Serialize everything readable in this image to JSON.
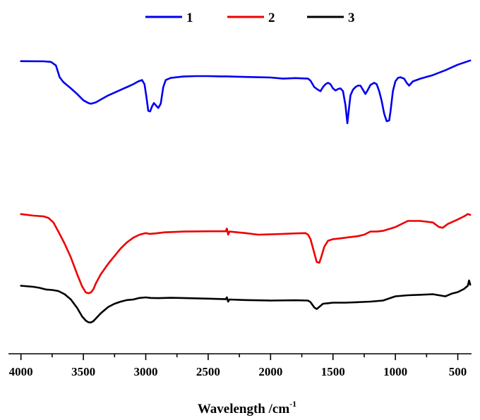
{
  "chart_data": {
    "type": "line",
    "title": "",
    "xlabel": "Wavelength /cm",
    "xlabel_superscript": "-1",
    "ylabel": "",
    "xlim": [
      4100,
      390
    ],
    "x_reversed": true,
    "ylim": [
      0,
      100
    ],
    "grid": false,
    "legend_position": "top-center",
    "x_ticks": [
      4000,
      3500,
      3000,
      2500,
      2000,
      1500,
      1000,
      500
    ],
    "x_tick_labels": [
      "4000",
      "3500",
      "3000",
      "2500",
      "2000",
      "1500",
      "1000",
      "500"
    ],
    "series": [
      {
        "name": "1",
        "color": "#0000ee",
        "points": [
          [
            4000,
            91.5
          ],
          [
            3820,
            91.4
          ],
          [
            3760,
            91.0
          ],
          [
            3720,
            88.5
          ],
          [
            3690,
            80.0
          ],
          [
            3660,
            76.5
          ],
          [
            3600,
            72.0
          ],
          [
            3550,
            68.0
          ],
          [
            3500,
            63.5
          ],
          [
            3460,
            61.5
          ],
          [
            3440,
            61.0
          ],
          [
            3400,
            62.0
          ],
          [
            3350,
            64.5
          ],
          [
            3300,
            67.0
          ],
          [
            3250,
            69.0
          ],
          [
            3200,
            71.0
          ],
          [
            3150,
            73.0
          ],
          [
            3100,
            75.0
          ],
          [
            3060,
            77.0
          ],
          [
            3030,
            78.0
          ],
          [
            3010,
            75.0
          ],
          [
            2995,
            66.0
          ],
          [
            2980,
            56.0
          ],
          [
            2965,
            55.5
          ],
          [
            2950,
            59.0
          ],
          [
            2935,
            61.5
          ],
          [
            2920,
            60.0
          ],
          [
            2900,
            58.0
          ],
          [
            2880,
            61.0
          ],
          [
            2860,
            73.0
          ],
          [
            2840,
            78.0
          ],
          [
            2800,
            79.5
          ],
          [
            2700,
            80.5
          ],
          [
            2600,
            80.8
          ],
          [
            2500,
            80.8
          ],
          [
            2400,
            80.6
          ],
          [
            2350,
            80.6
          ],
          [
            2200,
            80.2
          ],
          [
            2000,
            79.8
          ],
          [
            1900,
            79.0
          ],
          [
            1800,
            79.4
          ],
          [
            1700,
            79.0
          ],
          [
            1680,
            77.5
          ],
          [
            1650,
            73.0
          ],
          [
            1620,
            71.0
          ],
          [
            1600,
            70.0
          ],
          [
            1580,
            73.0
          ],
          [
            1560,
            75.0
          ],
          [
            1540,
            76.0
          ],
          [
            1520,
            75.0
          ],
          [
            1500,
            72.0
          ],
          [
            1480,
            70.5
          ],
          [
            1460,
            71.5
          ],
          [
            1440,
            72.0
          ],
          [
            1420,
            70.0
          ],
          [
            1400,
            60.0
          ],
          [
            1385,
            47.0
          ],
          [
            1375,
            55.0
          ],
          [
            1360,
            67.0
          ],
          [
            1340,
            71.0
          ],
          [
            1320,
            73.0
          ],
          [
            1300,
            74.0
          ],
          [
            1280,
            74.0
          ],
          [
            1260,
            71.0
          ],
          [
            1240,
            68.0
          ],
          [
            1220,
            71.0
          ],
          [
            1200,
            74.5
          ],
          [
            1170,
            76.0
          ],
          [
            1150,
            75.0
          ],
          [
            1130,
            70.0
          ],
          [
            1110,
            63.0
          ],
          [
            1090,
            54.0
          ],
          [
            1070,
            48.5
          ],
          [
            1050,
            49.0
          ],
          [
            1040,
            55.0
          ],
          [
            1020,
            70.0
          ],
          [
            1000,
            77.0
          ],
          [
            980,
            79.5
          ],
          [
            960,
            80.0
          ],
          [
            930,
            79.0
          ],
          [
            910,
            76.0
          ],
          [
            890,
            74.0
          ],
          [
            875,
            75.5
          ],
          [
            860,
            77.0
          ],
          [
            800,
            79.0
          ],
          [
            700,
            81.5
          ],
          [
            600,
            85.0
          ],
          [
            500,
            89.0
          ],
          [
            450,
            90.5
          ],
          [
            400,
            92.0
          ]
        ]
      },
      {
        "name": "2",
        "color": "#ee0000",
        "points": [
          [
            4000,
            57.5
          ],
          [
            3900,
            56.5
          ],
          [
            3820,
            56.0
          ],
          [
            3780,
            55.0
          ],
          [
            3740,
            52.0
          ],
          [
            3700,
            46.0
          ],
          [
            3650,
            38.0
          ],
          [
            3600,
            29.0
          ],
          [
            3550,
            18.0
          ],
          [
            3510,
            10.0
          ],
          [
            3480,
            6.0
          ],
          [
            3460,
            5.5
          ],
          [
            3440,
            6.0
          ],
          [
            3420,
            8.0
          ],
          [
            3400,
            12.0
          ],
          [
            3360,
            18.0
          ],
          [
            3300,
            25.0
          ],
          [
            3250,
            30.0
          ],
          [
            3200,
            35.0
          ],
          [
            3150,
            39.0
          ],
          [
            3100,
            42.0
          ],
          [
            3050,
            44.0
          ],
          [
            3000,
            45.0
          ],
          [
            2970,
            44.5
          ],
          [
            2920,
            44.8
          ],
          [
            2850,
            45.5
          ],
          [
            2700,
            46.0
          ],
          [
            2500,
            46.2
          ],
          [
            2360,
            46.2
          ],
          [
            2350,
            48.0
          ],
          [
            2340,
            44.0
          ],
          [
            2330,
            46.0
          ],
          [
            2200,
            45.0
          ],
          [
            2100,
            44.0
          ],
          [
            2000,
            44.2
          ],
          [
            1900,
            44.5
          ],
          [
            1800,
            44.8
          ],
          [
            1720,
            45.0
          ],
          [
            1700,
            44.0
          ],
          [
            1680,
            41.0
          ],
          [
            1650,
            32.0
          ],
          [
            1630,
            26.0
          ],
          [
            1610,
            25.5
          ],
          [
            1595,
            29.0
          ],
          [
            1570,
            36.0
          ],
          [
            1540,
            40.0
          ],
          [
            1500,
            41.0
          ],
          [
            1450,
            41.5
          ],
          [
            1400,
            42.0
          ],
          [
            1350,
            42.5
          ],
          [
            1300,
            43.0
          ],
          [
            1250,
            44.0
          ],
          [
            1200,
            46.0
          ],
          [
            1150,
            46.0
          ],
          [
            1100,
            46.5
          ],
          [
            1000,
            49.0
          ],
          [
            900,
            53.0
          ],
          [
            800,
            53.0
          ],
          [
            700,
            52.0
          ],
          [
            650,
            49.0
          ],
          [
            620,
            48.5
          ],
          [
            580,
            51.0
          ],
          [
            500,
            54.0
          ],
          [
            450,
            56.0
          ],
          [
            420,
            57.5
          ],
          [
            400,
            57.0
          ]
        ]
      },
      {
        "name": "3",
        "color": "#000000",
        "points": [
          [
            4000,
            35.0
          ],
          [
            3900,
            34.0
          ],
          [
            3850,
            33.0
          ],
          [
            3800,
            31.5
          ],
          [
            3750,
            31.0
          ],
          [
            3700,
            30.0
          ],
          [
            3650,
            27.0
          ],
          [
            3600,
            22.0
          ],
          [
            3550,
            14.0
          ],
          [
            3510,
            6.0
          ],
          [
            3480,
            2.0
          ],
          [
            3460,
            0.5
          ],
          [
            3440,
            0.3
          ],
          [
            3420,
            1.5
          ],
          [
            3400,
            4.0
          ],
          [
            3360,
            9.0
          ],
          [
            3300,
            15.0
          ],
          [
            3250,
            18.0
          ],
          [
            3200,
            20.0
          ],
          [
            3150,
            21.5
          ],
          [
            3100,
            22.0
          ],
          [
            3050,
            23.5
          ],
          [
            3000,
            24.0
          ],
          [
            2960,
            23.5
          ],
          [
            2900,
            23.3
          ],
          [
            2800,
            23.6
          ],
          [
            2700,
            23.4
          ],
          [
            2500,
            22.8
          ],
          [
            2400,
            22.5
          ],
          [
            2360,
            22.3
          ],
          [
            2350,
            24.0
          ],
          [
            2340,
            20.0
          ],
          [
            2330,
            22.0
          ],
          [
            2200,
            21.5
          ],
          [
            2000,
            21.0
          ],
          [
            1800,
            21.3
          ],
          [
            1700,
            21.0
          ],
          [
            1680,
            19.5
          ],
          [
            1650,
            14.5
          ],
          [
            1630,
            13.0
          ],
          [
            1610,
            15.0
          ],
          [
            1580,
            18.0
          ],
          [
            1540,
            18.5
          ],
          [
            1500,
            19.0
          ],
          [
            1400,
            19.0
          ],
          [
            1300,
            19.5
          ],
          [
            1200,
            20.0
          ],
          [
            1100,
            21.0
          ],
          [
            1000,
            25.0
          ],
          [
            900,
            26.0
          ],
          [
            800,
            26.5
          ],
          [
            700,
            27.0
          ],
          [
            650,
            26.0
          ],
          [
            600,
            25.0
          ],
          [
            550,
            27.5
          ],
          [
            500,
            29.0
          ],
          [
            450,
            32.0
          ],
          [
            420,
            35.0
          ],
          [
            410,
            40.0
          ],
          [
            400,
            36.0
          ]
        ]
      }
    ]
  }
}
